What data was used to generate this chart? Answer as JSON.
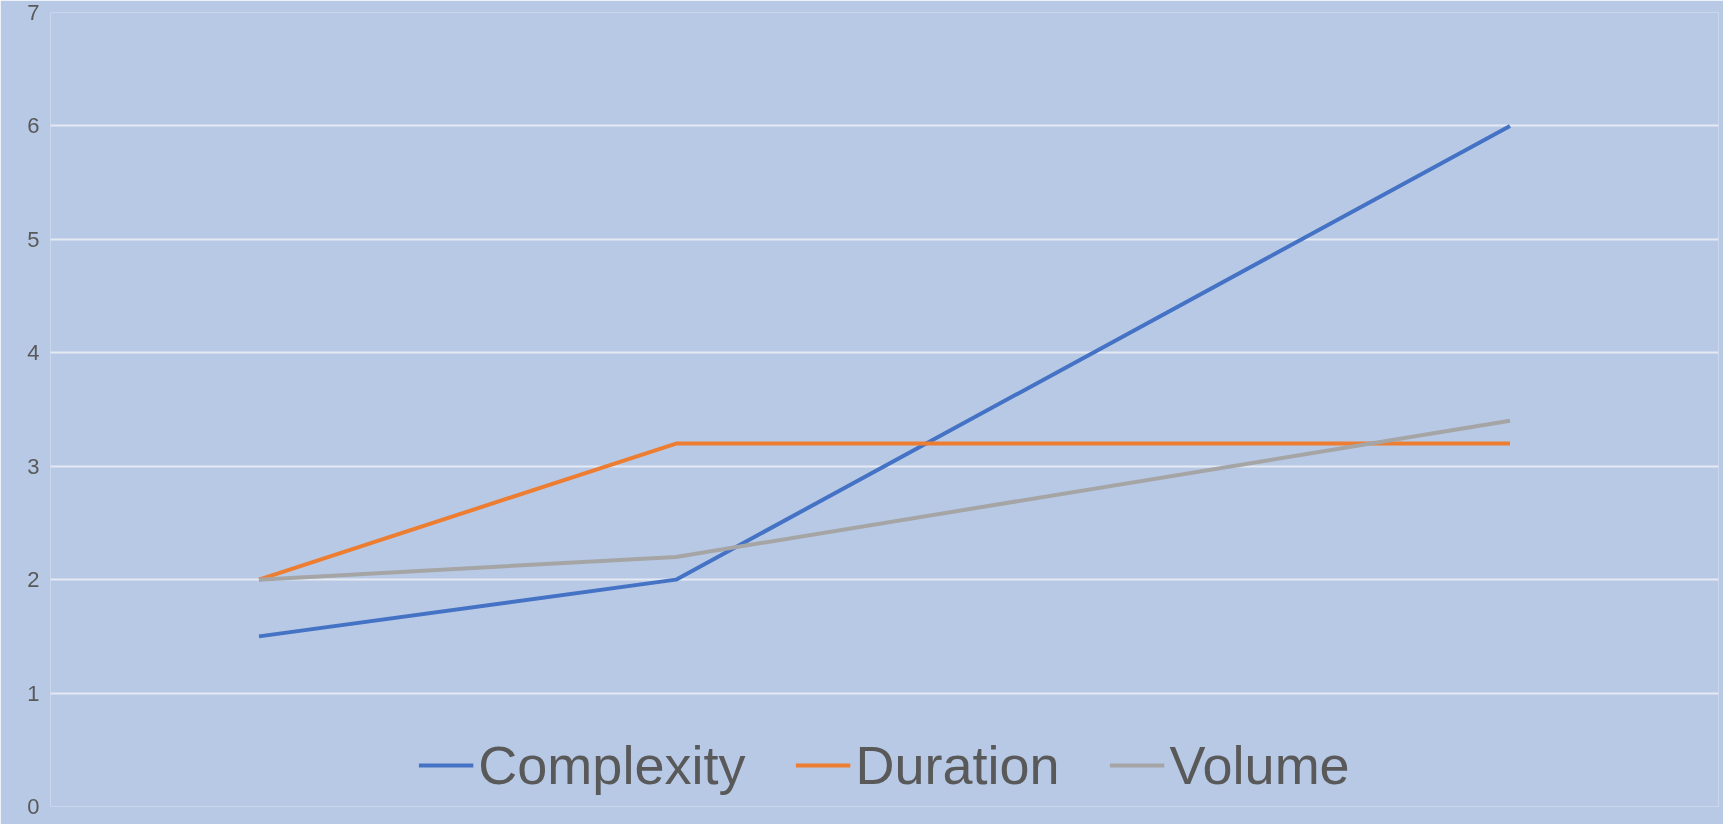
{
  "chart_data": {
    "type": "line",
    "categories": [
      null,
      null,
      null,
      null
    ],
    "series": [
      {
        "name": "Complexity",
        "color": "#4472c4",
        "values": [
          1.5,
          2,
          null,
          6
        ]
      },
      {
        "name": "Duration",
        "color": "#ed7d31",
        "values": [
          2,
          3.2,
          null,
          3.2
        ]
      },
      {
        "name": "Volume",
        "color": "#a5a5a5",
        "values": [
          2,
          2.2,
          null,
          3.4
        ]
      }
    ],
    "ylim": [
      0,
      7
    ],
    "yticks": [
      0,
      1,
      2,
      3,
      4,
      5,
      6,
      7
    ],
    "grid": "y",
    "legend": "bottom",
    "marker": "none",
    "line_style": "solid"
  }
}
